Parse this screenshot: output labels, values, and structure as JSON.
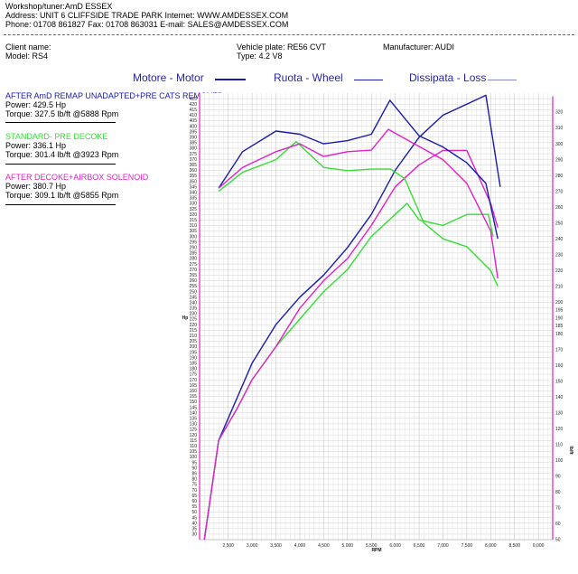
{
  "header": {
    "line1": "Workshop/tuner:AmD ESSEX",
    "line2": "Address: UNIT 6 CLIFFSIDE TRADE PARK Internet: WWW.AMDESSEX.COM",
    "line3": "Phone: 01708 861827 Fax: 01708 863031 E-mail: SALES@AMDESSEX.COM"
  },
  "vehicle": {
    "client": "Client name:",
    "model": "Model: RS4",
    "plate": "Vehicle plate: RE56 CVT",
    "type": "Type: 4.2 V8",
    "manufacturer": "Manufacturer: AUDI"
  },
  "legend": {
    "motor": "Motore - Motor",
    "wheel": "Ruota - Wheel",
    "loss": "Dissipata - Loss",
    "color": "#2626a0"
  },
  "runs": [
    {
      "title": "AFTER AmD REMAP UNADAPTED+PRE CATS REMOVED",
      "power": "Power: 429.5 Hp",
      "torque": "Torque: 327.5 lb/ft @5888 Rpm",
      "color": "#1a1aa8"
    },
    {
      "title": "STANDARD- PRE DECOKE",
      "power": "Power: 336.1 Hp",
      "torque": "Torque: 301.4 lb/ft @3923 Rpm",
      "color": "#33dd33"
    },
    {
      "title": "AFTER DECOKE+AIRBOX SOLENOID",
      "power": "Power: 380.7 Hp",
      "torque": "Torque: 309.1 lb/ft @5855 Rpm",
      "color": "#e020c8"
    }
  ],
  "chart_data": {
    "type": "line",
    "xlabel": "RPM",
    "ylabel_left": "Hp",
    "ylabel_right": "lb/ft",
    "xlim": [
      1900,
      9300
    ],
    "ylim_left": [
      25,
      430
    ],
    "ylim_right": [
      50,
      332
    ],
    "grid": true,
    "x_ticks": [
      "2,500",
      "3,000",
      "3,500",
      "4,000",
      "4,500",
      "5,000",
      "5,500",
      "6,000",
      "6,500",
      "7,000",
      "7,500",
      "8,000",
      "8,500",
      "9,000"
    ],
    "x_tick_values": [
      2500,
      3000,
      3500,
      4000,
      4500,
      5000,
      5500,
      6000,
      6500,
      7000,
      7500,
      8000,
      8500,
      9000
    ],
    "y_left_ticks": [
      30,
      35,
      40,
      45,
      50,
      55,
      60,
      65,
      70,
      75,
      80,
      85,
      90,
      95,
      100,
      105,
      110,
      115,
      120,
      125,
      130,
      135,
      140,
      145,
      150,
      155,
      160,
      165,
      170,
      175,
      180,
      185,
      190,
      195,
      200,
      205,
      210,
      215,
      220,
      225,
      230,
      235,
      240,
      245,
      250,
      255,
      260,
      265,
      270,
      275,
      280,
      285,
      290,
      295,
      300,
      305,
      310,
      315,
      320,
      325,
      330,
      335,
      340,
      345,
      350,
      355,
      360,
      365,
      370,
      375,
      380,
      385,
      390,
      395,
      400,
      405,
      410,
      415,
      420,
      425
    ],
    "y_right_ticks": [
      50,
      60,
      70,
      80,
      90,
      100,
      110,
      120,
      130,
      140,
      150,
      160,
      170,
      180,
      190,
      200,
      210,
      220,
      230,
      240,
      250,
      260,
      270,
      280,
      290,
      300,
      310,
      320
    ],
    "y_right_ticks_extra": [
      185,
      195
    ],
    "power_series": [
      {
        "name": "AFTER AmD REMAP UNADAPTED+PRE CATS REMOVED",
        "color": "#1a1aa8",
        "x": [
          2000,
          2300,
          2700,
          3000,
          3500,
          4000,
          4500,
          5000,
          5500,
          6000,
          6500,
          7000,
          7500,
          7900,
          8200
        ],
        "y": [
          25,
          115,
          155,
          185,
          220,
          245,
          265,
          290,
          320,
          360,
          390,
          410,
          420,
          428,
          345
        ]
      },
      {
        "name": "STANDARD- PRE DECOKE",
        "color": "#33dd33",
        "x": [
          2000,
          2300,
          2700,
          3000,
          3500,
          4000,
          4500,
          5000,
          5500,
          6000,
          6250,
          6500,
          7000,
          7500,
          7950,
          8050
        ],
        "y": [
          25,
          115,
          145,
          170,
          200,
          225,
          250,
          270,
          300,
          320,
          330,
          315,
          310,
          320,
          320,
          300
        ]
      },
      {
        "name": "AFTER DECOKE+AIRBOX SOLENOID",
        "color": "#e020c8",
        "x": [
          2000,
          2300,
          2700,
          3000,
          3500,
          4000,
          4500,
          5000,
          5500,
          6000,
          6500,
          7000,
          7500,
          8000,
          8150
        ],
        "y": [
          25,
          115,
          145,
          170,
          200,
          235,
          260,
          280,
          310,
          345,
          365,
          378,
          378,
          330,
          308
        ]
      }
    ],
    "torque_series": [
      {
        "name": "AFTER AmD REMAP UNADAPTED+PRE CATS REMOVED",
        "color": "#1a1aa8",
        "x": [
          2300,
          2800,
          3500,
          4000,
          4500,
          5000,
          5500,
          5888,
          6500,
          7000,
          7500,
          7900,
          8150
        ],
        "y": [
          272,
          295,
          308,
          306,
          300,
          302,
          306,
          327.5,
          305,
          298,
          288,
          275,
          240
        ]
      },
      {
        "name": "STANDARD- PRE DECOKE",
        "color": "#33dd33",
        "x": [
          2300,
          2800,
          3500,
          3923,
          4500,
          5000,
          5500,
          5900,
          6200,
          6600,
          7000,
          7500,
          8000,
          8150
        ],
        "y": [
          270,
          282,
          290,
          301.4,
          285,
          283,
          284,
          284,
          278,
          250,
          240,
          235,
          220,
          210
        ]
      },
      {
        "name": "AFTER DECOKE+AIRBOX SOLENOID",
        "color": "#e020c8",
        "x": [
          2300,
          2800,
          3500,
          4000,
          4500,
          5000,
          5500,
          5855,
          6400,
          7000,
          7500,
          8000,
          8150
        ],
        "y": [
          272,
          285,
          295,
          300,
          292,
          295,
          296,
          309.1,
          300,
          290,
          275,
          245,
          215
        ]
      }
    ]
  }
}
